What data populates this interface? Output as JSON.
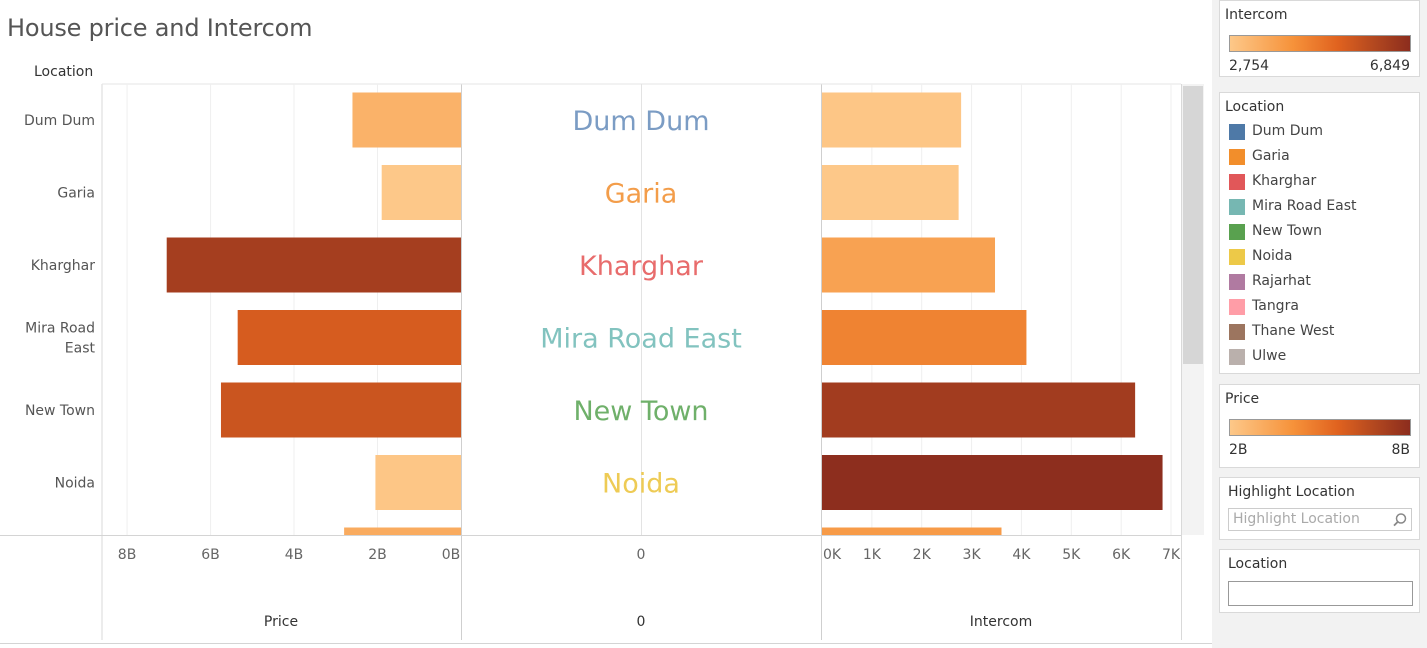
{
  "title": "House price and Intercom",
  "row_header": "Location",
  "chart_data": {
    "type": "bar",
    "categories": [
      "Dum Dum",
      "Garia",
      "Kharghar",
      "Mira Road East",
      "New Town",
      "Noida"
    ],
    "row_labels": [
      [
        "Dum Dum"
      ],
      [
        "Garia"
      ],
      [
        "Kharghar"
      ],
      [
        "Mira Road",
        "East"
      ],
      [
        "New Town"
      ],
      [
        "Noida"
      ]
    ],
    "center_label_colors": [
      "#7b9cc4",
      "#f39d4a",
      "#e86c6c",
      "#82c3bf",
      "#6fb06a",
      "#eecb55"
    ],
    "price": {
      "label": "Price",
      "values": [
        2.6,
        1.9,
        7.05,
        5.35,
        5.75,
        2.05
      ],
      "partial_next_value": 2.8,
      "unit_suffix": "B",
      "direction": "reversed",
      "xlim": [
        0,
        8.6
      ],
      "ticks": [
        8,
        6,
        4,
        2,
        0
      ],
      "tick_labels": [
        "8B",
        "6B",
        "4B",
        "2B",
        "0B"
      ],
      "color_range": [
        2,
        8
      ]
    },
    "center": {
      "label": "0",
      "tick_labels": [
        "0"
      ]
    },
    "intercom": {
      "label": "Intercom",
      "values": [
        2790,
        2740,
        3470,
        4100,
        6280,
        6830
      ],
      "partial_next_value": 3600,
      "xlim": [
        0,
        7200
      ],
      "ticks": [
        0,
        1000,
        2000,
        3000,
        4000,
        5000,
        6000,
        7000
      ],
      "tick_labels": [
        "0K",
        "1K",
        "2K",
        "3K",
        "4K",
        "5K",
        "6K",
        "7K"
      ],
      "color_range": [
        2754,
        6849
      ]
    },
    "color_ramp": [
      "#fdc889",
      "#f6923a",
      "#e0621f",
      "#b3481f",
      "#8c2d1e"
    ]
  },
  "legends": {
    "intercom": {
      "title": "Intercom",
      "min": "2,754",
      "max": "6,849"
    },
    "location": {
      "title": "Location",
      "items": [
        {
          "label": "Dum Dum",
          "color": "#4e79a7"
        },
        {
          "label": "Garia",
          "color": "#f28e2b"
        },
        {
          "label": "Kharghar",
          "color": "#e15759"
        },
        {
          "label": "Mira Road East",
          "color": "#76b7b2"
        },
        {
          "label": "New Town",
          "color": "#59a14f"
        },
        {
          "label": "Noida",
          "color": "#edc948"
        },
        {
          "label": "Rajarhat",
          "color": "#b07aa1"
        },
        {
          "label": "Tangra",
          "color": "#ff9da7"
        },
        {
          "label": "Thane West",
          "color": "#9c755f"
        },
        {
          "label": "Ulwe",
          "color": "#bab0ac"
        }
      ]
    },
    "price": {
      "title": "Price",
      "min": "2B",
      "max": "8B"
    }
  },
  "filters": {
    "highlight": {
      "title": "Highlight Location",
      "placeholder": "Highlight Location"
    },
    "location": {
      "title": "Location",
      "value": ""
    }
  }
}
